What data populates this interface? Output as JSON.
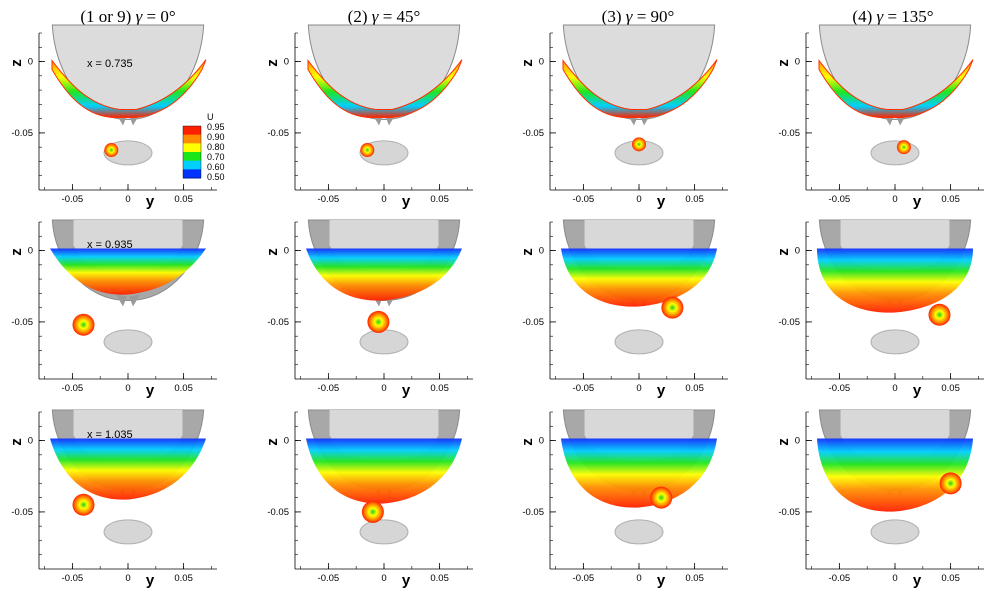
{
  "chart_data": {
    "type": "heatmap",
    "columns": [
      {
        "prefix": "(1 or 9) ",
        "gamma": "0°"
      },
      {
        "prefix": "(2) ",
        "gamma": "45°"
      },
      {
        "prefix": "(3) ",
        "gamma": "90°"
      },
      {
        "prefix": "(4) ",
        "gamma": "135°"
      }
    ],
    "rows": [
      {
        "x_label": "x = 0.735"
      },
      {
        "x_label": "x = 0.935"
      },
      {
        "x_label": "x = 1.035"
      }
    ],
    "xlabel": "y",
    "ylabel": "z",
    "xlim": [
      -0.08,
      0.08
    ],
    "ylim": [
      -0.09,
      0.02
    ],
    "x_ticks": [
      "-0.05",
      "0",
      "0.05"
    ],
    "y_ticks": [
      "0",
      "-0.05"
    ],
    "x_tick_values": [
      -0.05,
      0,
      0.05
    ],
    "y_tick_values": [
      0,
      -0.05
    ],
    "colorbar": {
      "title": "U",
      "levels": [
        "0.95",
        "0.90",
        "0.80",
        "0.70",
        "0.60",
        "0.50"
      ],
      "colors": [
        "#ff2000",
        "#ff8c00",
        "#ffff00",
        "#19e619",
        "#00cfff",
        "#0033ff"
      ]
    },
    "vortex_cores": [
      [
        [
          -0.015,
          -0.062
        ],
        [
          -0.015,
          -0.062
        ],
        [
          0,
          -0.058
        ],
        [
          0.008,
          -0.06
        ]
      ],
      [
        [
          -0.04,
          -0.052
        ],
        [
          -0.005,
          -0.05
        ],
        [
          0.03,
          -0.04
        ],
        [
          0.04,
          -0.045
        ]
      ],
      [
        [
          -0.04,
          -0.045
        ],
        [
          -0.01,
          -0.05
        ],
        [
          0.02,
          -0.04
        ],
        [
          0.05,
          -0.03
        ]
      ]
    ]
  }
}
